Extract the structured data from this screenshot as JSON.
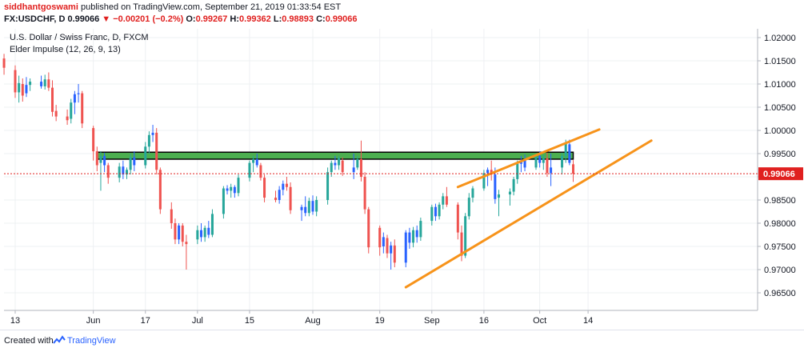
{
  "header": {
    "author": "siddhantgoswami",
    "published": " published on TradingView.com, September 21, 2019 01:33:54 EST",
    "symbol": "FX:USDCHF, D",
    "last": "0.99066",
    "change": "▼ −0.00201 (−0.2%)",
    "o_label": "O:",
    "o_value": "0.99267",
    "h_label": "H:",
    "h_value": "0.99362",
    "l_label": "L:",
    "l_value": "0.98893",
    "c_label": "C:",
    "c_value": "0.99066"
  },
  "pane": {
    "title": "U.S. Dollar / Swiss Franc, D, FXCM",
    "indicator": "Elder Impulse (12, 26, 9, 13)"
  },
  "footer": {
    "created": "Created with",
    "brand": "TradingView"
  },
  "colors": {
    "up": "#26a69a",
    "down": "#ef5350",
    "neutral": "#2962ff",
    "trendline": "#f7931a",
    "zone_fill": "#4caf50",
    "price_tag": "#e0201f",
    "grid": "#eef0f3"
  },
  "chart_data": {
    "type": "candlestick",
    "symbol": "USDCHF",
    "timeframe": "D",
    "x_ticks": [
      "13",
      "Jun",
      "17",
      "Jul",
      "15",
      "Aug",
      "19",
      "Sep",
      "16",
      "Oct",
      "14"
    ],
    "y_ticks": [
      "1.02000",
      "1.01500",
      "1.01000",
      "1.00500",
      "1.00000",
      "0.99500",
      "0.99000",
      "0.98500",
      "0.98000",
      "0.97500",
      "0.97000",
      "0.96500"
    ],
    "ylim": [
      0.9625,
      1.0215
    ],
    "last_price": "0.99066",
    "candles": [
      {
        "d": "2019-05-10",
        "o": 1.0155,
        "h": 1.0165,
        "l": 1.012,
        "c": 1.0135,
        "col": "down"
      },
      {
        "d": "2019-05-13",
        "o": 1.013,
        "h": 1.014,
        "l": 1.007,
        "c": 1.0082,
        "col": "down"
      },
      {
        "d": "2019-05-14",
        "o": 1.0082,
        "h": 1.0118,
        "l": 1.006,
        "c": 1.0102,
        "col": "up"
      },
      {
        "d": "2019-05-15",
        "o": 1.01,
        "h": 1.0112,
        "l": 1.0062,
        "c": 1.0075,
        "col": "down"
      },
      {
        "d": "2019-05-16",
        "o": 1.008,
        "h": 1.0115,
        "l": 1.0072,
        "c": 1.0098,
        "col": "neutral"
      },
      {
        "d": "2019-05-17",
        "o": 1.0098,
        "h": 1.0112,
        "l": 1.0085,
        "c": 1.0105,
        "col": "up"
      },
      {
        "d": "2019-05-20",
        "o": 1.0105,
        "h": 1.0118,
        "l": 1.009,
        "c": 1.0095,
        "col": "neutral"
      },
      {
        "d": "2019-05-21",
        "o": 1.0095,
        "h": 1.012,
        "l": 1.0088,
        "c": 1.011,
        "col": "up"
      },
      {
        "d": "2019-05-22",
        "o": 1.011,
        "h": 1.0125,
        "l": 1.0085,
        "c": 1.0092,
        "col": "down"
      },
      {
        "d": "2019-05-23",
        "o": 1.0092,
        "h": 1.0108,
        "l": 1.003,
        "c": 1.004,
        "col": "down"
      },
      {
        "d": "2019-05-24",
        "o": 1.0042,
        "h": 1.0055,
        "l": 1.002,
        "c": 1.003,
        "col": "down"
      },
      {
        "d": "2019-05-27",
        "o": 1.003,
        "h": 1.0045,
        "l": 1.0012,
        "c": 1.0022,
        "col": "down"
      },
      {
        "d": "2019-05-28",
        "o": 1.0025,
        "h": 1.0068,
        "l": 1.0015,
        "c": 1.006,
        "col": "up"
      },
      {
        "d": "2019-05-29",
        "o": 1.006,
        "h": 1.0085,
        "l": 1.0035,
        "c": 1.0078,
        "col": "neutral"
      },
      {
        "d": "2019-05-30",
        "o": 1.0078,
        "h": 1.01,
        "l": 1.006,
        "c": 1.008,
        "col": "neutral"
      },
      {
        "d": "2019-05-31",
        "o": 1.008,
        "h": 1.0085,
        "l": 1.0005,
        "c": 1.0015,
        "col": "down"
      },
      {
        "d": "2019-06-03",
        "o": 1.0005,
        "h": 1.001,
        "l": 0.9935,
        "c": 0.9955,
        "col": "down"
      },
      {
        "d": "2019-06-04",
        "o": 0.9955,
        "h": 0.9965,
        "l": 0.9912,
        "c": 0.9925,
        "col": "down"
      },
      {
        "d": "2019-06-05",
        "o": 0.993,
        "h": 0.9955,
        "l": 0.987,
        "c": 0.9945,
        "col": "up"
      },
      {
        "d": "2019-06-06",
        "o": 0.9945,
        "h": 0.9952,
        "l": 0.991,
        "c": 0.9925,
        "col": "neutral"
      },
      {
        "d": "2019-06-07",
        "o": 0.9925,
        "h": 0.993,
        "l": 0.9885,
        "c": 0.9898,
        "col": "down"
      },
      {
        "d": "2019-06-10",
        "o": 0.9898,
        "h": 0.993,
        "l": 0.9888,
        "c": 0.9922,
        "col": "up"
      },
      {
        "d": "2019-06-11",
        "o": 0.9922,
        "h": 0.9935,
        "l": 0.9895,
        "c": 0.9905,
        "col": "neutral"
      },
      {
        "d": "2019-06-12",
        "o": 0.9905,
        "h": 0.992,
        "l": 0.9895,
        "c": 0.9915,
        "col": "up"
      },
      {
        "d": "2019-06-13",
        "o": 0.9915,
        "h": 0.995,
        "l": 0.9905,
        "c": 0.9942,
        "col": "up"
      },
      {
        "d": "2019-06-14",
        "o": 0.9942,
        "h": 0.9955,
        "l": 0.9912,
        "c": 0.9925,
        "col": "neutral"
      },
      {
        "d": "2019-06-17",
        "o": 0.9925,
        "h": 0.9975,
        "l": 0.9918,
        "c": 0.9965,
        "col": "up"
      },
      {
        "d": "2019-06-18",
        "o": 0.9965,
        "h": 0.9998,
        "l": 0.995,
        "c": 0.999,
        "col": "up"
      },
      {
        "d": "2019-06-19",
        "o": 0.999,
        "h": 1.0012,
        "l": 0.9975,
        "c": 0.9995,
        "col": "neutral"
      },
      {
        "d": "2019-06-20",
        "o": 0.9995,
        "h": 1.0005,
        "l": 0.9905,
        "c": 0.9915,
        "col": "down"
      },
      {
        "d": "2019-06-21",
        "o": 0.9915,
        "h": 0.992,
        "l": 0.982,
        "c": 0.983,
        "col": "down"
      },
      {
        "d": "2019-06-24",
        "o": 0.983,
        "h": 0.9845,
        "l": 0.9788,
        "c": 0.98,
        "col": "down"
      },
      {
        "d": "2019-06-25",
        "o": 0.98,
        "h": 0.981,
        "l": 0.9755,
        "c": 0.9765,
        "col": "down"
      },
      {
        "d": "2019-06-26",
        "o": 0.9765,
        "h": 0.98,
        "l": 0.9755,
        "c": 0.9795,
        "col": "neutral"
      },
      {
        "d": "2019-06-27",
        "o": 0.9795,
        "h": 0.98,
        "l": 0.975,
        "c": 0.976,
        "col": "down"
      },
      {
        "d": "2019-06-28",
        "o": 0.976,
        "h": 0.9775,
        "l": 0.97,
        "c": 0.9755,
        "col": "down"
      },
      {
        "d": "2019-07-01",
        "o": 0.9765,
        "h": 0.9795,
        "l": 0.9755,
        "c": 0.9785,
        "col": "up"
      },
      {
        "d": "2019-07-02",
        "o": 0.9785,
        "h": 0.98,
        "l": 0.976,
        "c": 0.977,
        "col": "neutral"
      },
      {
        "d": "2019-07-03",
        "o": 0.977,
        "h": 0.9795,
        "l": 0.976,
        "c": 0.979,
        "col": "up"
      },
      {
        "d": "2019-07-04",
        "o": 0.979,
        "h": 0.9805,
        "l": 0.9768,
        "c": 0.9775,
        "col": "neutral"
      },
      {
        "d": "2019-07-05",
        "o": 0.9775,
        "h": 0.983,
        "l": 0.977,
        "c": 0.982,
        "col": "up"
      },
      {
        "d": "2019-07-08",
        "o": 0.982,
        "h": 0.988,
        "l": 0.981,
        "c": 0.9875,
        "col": "up"
      },
      {
        "d": "2019-07-09",
        "o": 0.9875,
        "h": 0.9882,
        "l": 0.9862,
        "c": 0.987,
        "col": "neutral"
      },
      {
        "d": "2019-07-10",
        "o": 0.987,
        "h": 0.9885,
        "l": 0.9855,
        "c": 0.9878,
        "col": "up"
      },
      {
        "d": "2019-07-11",
        "o": 0.9878,
        "h": 0.9882,
        "l": 0.9855,
        "c": 0.9865,
        "col": "neutral"
      },
      {
        "d": "2019-07-12",
        "o": 0.9865,
        "h": 0.9905,
        "l": 0.9858,
        "c": 0.9898,
        "col": "up"
      },
      {
        "d": "2019-07-15",
        "o": 0.9898,
        "h": 0.9935,
        "l": 0.989,
        "c": 0.993,
        "col": "up"
      },
      {
        "d": "2019-07-16",
        "o": 0.993,
        "h": 0.9945,
        "l": 0.991,
        "c": 0.9938,
        "col": "up"
      },
      {
        "d": "2019-07-17",
        "o": 0.9938,
        "h": 0.995,
        "l": 0.992,
        "c": 0.9925,
        "col": "neutral"
      },
      {
        "d": "2019-07-18",
        "o": 0.9925,
        "h": 0.993,
        "l": 0.9892,
        "c": 0.9898,
        "col": "down"
      },
      {
        "d": "2019-07-19",
        "o": 0.9898,
        "h": 0.9905,
        "l": 0.9845,
        "c": 0.9855,
        "col": "down"
      },
      {
        "d": "2019-07-22",
        "o": 0.9855,
        "h": 0.987,
        "l": 0.9845,
        "c": 0.985,
        "col": "down"
      },
      {
        "d": "2019-07-23",
        "o": 0.985,
        "h": 0.988,
        "l": 0.9842,
        "c": 0.9872,
        "col": "neutral"
      },
      {
        "d": "2019-07-24",
        "o": 0.9872,
        "h": 0.9892,
        "l": 0.986,
        "c": 0.9885,
        "col": "neutral"
      },
      {
        "d": "2019-07-25",
        "o": 0.9885,
        "h": 0.99,
        "l": 0.987,
        "c": 0.9878,
        "col": "down"
      },
      {
        "d": "2019-07-26",
        "o": 0.9878,
        "h": 0.9888,
        "l": 0.982,
        "c": 0.9828,
        "col": "down"
      },
      {
        "d": "2019-07-29",
        "o": 0.9828,
        "h": 0.984,
        "l": 0.9805,
        "c": 0.9835,
        "col": "neutral"
      },
      {
        "d": "2019-07-30",
        "o": 0.9835,
        "h": 0.9858,
        "l": 0.9815,
        "c": 0.9822,
        "col": "neutral"
      },
      {
        "d": "2019-07-31",
        "o": 0.9822,
        "h": 0.9855,
        "l": 0.9815,
        "c": 0.9848,
        "col": "up"
      },
      {
        "d": "2019-08-01",
        "o": 0.9848,
        "h": 0.986,
        "l": 0.9818,
        "c": 0.9825,
        "col": "neutral"
      },
      {
        "d": "2019-08-02",
        "o": 0.9825,
        "h": 0.9858,
        "l": 0.9815,
        "c": 0.985,
        "col": "up"
      },
      {
        "d": "2019-08-05",
        "o": 0.985,
        "h": 0.992,
        "l": 0.984,
        "c": 0.991,
        "col": "up"
      },
      {
        "d": "2019-08-06",
        "o": 0.991,
        "h": 0.9935,
        "l": 0.99,
        "c": 0.993,
        "col": "up"
      },
      {
        "d": "2019-08-07",
        "o": 0.993,
        "h": 0.9945,
        "l": 0.9915,
        "c": 0.9925,
        "col": "neutral"
      },
      {
        "d": "2019-08-08",
        "o": 0.9925,
        "h": 0.9945,
        "l": 0.9915,
        "c": 0.994,
        "col": "up"
      },
      {
        "d": "2019-08-09",
        "o": 0.9935,
        "h": 0.9942,
        "l": 0.9902,
        "c": 0.991,
        "col": "down"
      },
      {
        "d": "2019-08-12",
        "o": 0.991,
        "h": 0.995,
        "l": 0.9895,
        "c": 0.992,
        "col": "neutral"
      },
      {
        "d": "2019-08-13",
        "o": 0.992,
        "h": 0.9945,
        "l": 0.9915,
        "c": 0.9938,
        "col": "up"
      },
      {
        "d": "2019-08-14",
        "o": 0.9938,
        "h": 0.9978,
        "l": 0.989,
        "c": 0.99,
        "col": "down"
      },
      {
        "d": "2019-08-15",
        "o": 0.99,
        "h": 0.991,
        "l": 0.982,
        "c": 0.983,
        "col": "down"
      },
      {
        "d": "2019-08-16",
        "o": 0.983,
        "h": 0.9835,
        "l": 0.9735,
        "c": 0.9748,
        "col": "down"
      },
      {
        "d": "2019-08-19",
        "o": 0.979,
        "h": 0.9795,
        "l": 0.973,
        "c": 0.9748,
        "col": "down"
      },
      {
        "d": "2019-08-20",
        "o": 0.975,
        "h": 0.978,
        "l": 0.9735,
        "c": 0.977,
        "col": "neutral"
      },
      {
        "d": "2019-08-21",
        "o": 0.9768,
        "h": 0.9775,
        "l": 0.9725,
        "c": 0.9735,
        "col": "down"
      },
      {
        "d": "2019-08-22",
        "o": 0.9735,
        "h": 0.976,
        "l": 0.97,
        "c": 0.9752,
        "col": "neutral"
      },
      {
        "d": "2019-08-23",
        "o": 0.9752,
        "h": 0.9765,
        "l": 0.9705,
        "c": 0.9715,
        "col": "down"
      },
      {
        "d": "2019-08-26",
        "o": 0.9715,
        "h": 0.9785,
        "l": 0.9705,
        "c": 0.978,
        "col": "neutral"
      },
      {
        "d": "2019-08-27",
        "o": 0.978,
        "h": 0.979,
        "l": 0.9745,
        "c": 0.9758,
        "col": "neutral"
      },
      {
        "d": "2019-08-28",
        "o": 0.9758,
        "h": 0.9792,
        "l": 0.9748,
        "c": 0.9785,
        "col": "up"
      },
      {
        "d": "2019-08-29",
        "o": 0.9785,
        "h": 0.9795,
        "l": 0.9758,
        "c": 0.977,
        "col": "neutral"
      },
      {
        "d": "2019-08-30",
        "o": 0.977,
        "h": 0.9812,
        "l": 0.9762,
        "c": 0.9805,
        "col": "up"
      },
      {
        "d": "2019-09-02",
        "o": 0.9805,
        "h": 0.984,
        "l": 0.9795,
        "c": 0.9835,
        "col": "up"
      },
      {
        "d": "2019-09-03",
        "o": 0.9835,
        "h": 0.9842,
        "l": 0.9805,
        "c": 0.9815,
        "col": "neutral"
      },
      {
        "d": "2019-09-04",
        "o": 0.9815,
        "h": 0.9845,
        "l": 0.9808,
        "c": 0.984,
        "col": "up"
      },
      {
        "d": "2019-09-05",
        "o": 0.984,
        "h": 0.9865,
        "l": 0.983,
        "c": 0.9858,
        "col": "up"
      },
      {
        "d": "2019-09-06",
        "o": 0.9858,
        "h": 0.9878,
        "l": 0.9835,
        "c": 0.984,
        "col": "down"
      },
      {
        "d": "2019-09-09",
        "o": 0.984,
        "h": 0.9845,
        "l": 0.9765,
        "c": 0.978,
        "col": "down"
      },
      {
        "d": "2019-09-10",
        "o": 0.978,
        "h": 0.9795,
        "l": 0.9718,
        "c": 0.973,
        "col": "down"
      },
      {
        "d": "2019-09-11",
        "o": 0.973,
        "h": 0.9822,
        "l": 0.9725,
        "c": 0.9815,
        "col": "up"
      },
      {
        "d": "2019-09-12",
        "o": 0.9815,
        "h": 0.9865,
        "l": 0.9808,
        "c": 0.9855,
        "col": "up"
      },
      {
        "d": "2019-09-13",
        "o": 0.9855,
        "h": 0.988,
        "l": 0.9845,
        "c": 0.9875,
        "col": "up"
      },
      {
        "d": "2019-09-16",
        "o": 0.9875,
        "h": 0.9915,
        "l": 0.987,
        "c": 0.9908,
        "col": "up"
      },
      {
        "d": "2019-09-17",
        "o": 0.9908,
        "h": 0.992,
        "l": 0.988,
        "c": 0.9915,
        "col": "neutral"
      },
      {
        "d": "2019-09-18",
        "o": 0.9915,
        "h": 0.9935,
        "l": 0.9892,
        "c": 0.9905,
        "col": "down"
      },
      {
        "d": "2019-09-19",
        "o": 0.9905,
        "h": 0.992,
        "l": 0.9842,
        "c": 0.9852,
        "col": "neutral"
      },
      {
        "d": "2019-09-20",
        "o": 0.9855,
        "h": 0.9872,
        "l": 0.9815,
        "c": 0.9862,
        "col": "up"
      },
      {
        "d": "2019-09-23",
        "o": 0.9862,
        "h": 0.9875,
        "l": 0.9838,
        "c": 0.9868,
        "col": "up"
      },
      {
        "d": "2019-09-24",
        "o": 0.9868,
        "h": 0.99,
        "l": 0.986,
        "c": 0.9895,
        "col": "up"
      },
      {
        "d": "2019-09-25",
        "o": 0.9895,
        "h": 0.9935,
        "l": 0.9885,
        "c": 0.9928,
        "col": "up"
      },
      {
        "d": "2019-09-26",
        "o": 0.9928,
        "h": 0.9945,
        "l": 0.991,
        "c": 0.9935,
        "col": "neutral"
      },
      {
        "d": "2019-09-27",
        "o": 0.9935,
        "h": 0.9948,
        "l": 0.9912,
        "c": 0.992,
        "col": "neutral"
      },
      {
        "d": "2019-09-30",
        "o": 0.992,
        "h": 0.995,
        "l": 0.9915,
        "c": 0.9945,
        "col": "up"
      },
      {
        "d": "2019-10-01",
        "o": 0.9945,
        "h": 0.9955,
        "l": 0.992,
        "c": 0.993,
        "col": "neutral"
      },
      {
        "d": "2019-10-02",
        "o": 0.993,
        "h": 0.9948,
        "l": 0.9915,
        "c": 0.994,
        "col": "up"
      },
      {
        "d": "2019-10-03",
        "o": 0.994,
        "h": 0.9952,
        "l": 0.99,
        "c": 0.9908,
        "col": "down"
      },
      {
        "d": "2019-10-04",
        "o": 0.9908,
        "h": 0.995,
        "l": 0.988,
        "c": 0.992,
        "col": "neutral"
      },
      {
        "d": "2019-10-07",
        "o": 0.992,
        "h": 0.9952,
        "l": 0.9905,
        "c": 0.9945,
        "col": "up"
      },
      {
        "d": "2019-10-08",
        "o": 0.9945,
        "h": 0.998,
        "l": 0.993,
        "c": 0.9972,
        "col": "up"
      },
      {
        "d": "2019-10-09",
        "o": 0.997,
        "h": 0.998,
        "l": 0.9925,
        "c": 0.993,
        "col": "neutral"
      },
      {
        "d": "2019-10-10",
        "o": 0.9927,
        "h": 0.9936,
        "l": 0.9889,
        "c": 0.9907,
        "col": "down"
      }
    ],
    "horizontal_zone": {
      "from_date": "2019-06-04",
      "to_date": "2019-10-10",
      "price_low": 0.9938,
      "price_high": 0.9953
    },
    "trendlines": [
      {
        "from": [
          "2019-08-26",
          0.9662
        ],
        "to": [
          "2019-10-31",
          0.9978
        ]
      },
      {
        "from": [
          "2019-09-09",
          0.9878
        ],
        "to": [
          "2019-10-17",
          1.0002
        ]
      }
    ]
  }
}
